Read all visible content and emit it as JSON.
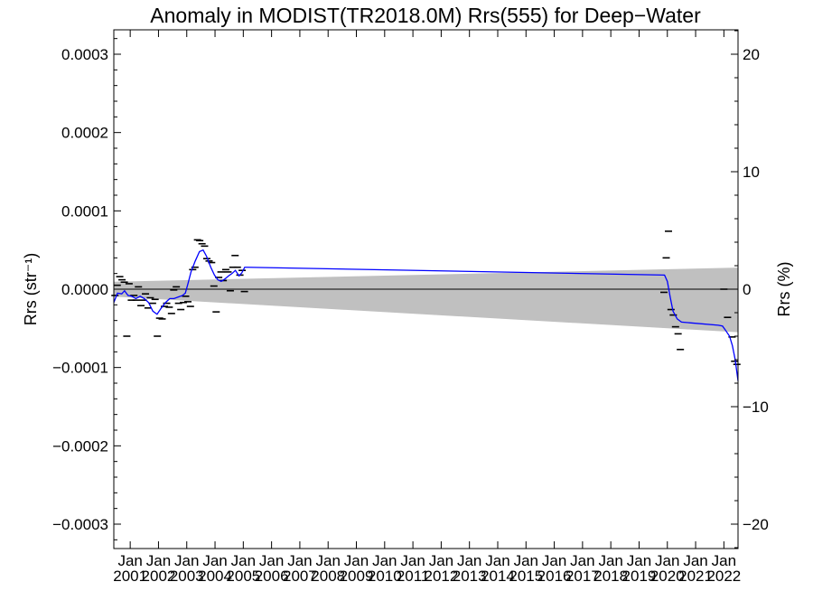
{
  "chart_data": {
    "type": "line",
    "title": "Anomaly in MODIST(TR2018.0M) Rrs(555) for Deep−Water",
    "ylabel_left": "Rrs (str⁻¹)",
    "ylabel_right": "Rrs (%)",
    "xlim": [
      2000.42,
      2022.5
    ],
    "ylim_left": [
      -0.00033,
      0.00033
    ],
    "ylim_right": [
      -22.8,
      22.8
    ],
    "x_ticks": [
      {
        "value": 2001.0,
        "line1": "Jan",
        "line2": "2001"
      },
      {
        "value": 2002.0,
        "line1": "Jan",
        "line2": "2002"
      },
      {
        "value": 2003.0,
        "line1": "Jan",
        "line2": "2003"
      },
      {
        "value": 2004.0,
        "line1": "Jan",
        "line2": "2004"
      },
      {
        "value": 2005.0,
        "line1": "Jan",
        "line2": "2005"
      },
      {
        "value": 2006.0,
        "line1": "Jan",
        "line2": "2006"
      },
      {
        "value": 2007.0,
        "line1": "Jan",
        "line2": "2007"
      },
      {
        "value": 2008.0,
        "line1": "Jan",
        "line2": "2008"
      },
      {
        "value": 2009.0,
        "line1": "Jan",
        "line2": "2009"
      },
      {
        "value": 2010.0,
        "line1": "Jan",
        "line2": "2010"
      },
      {
        "value": 2011.0,
        "line1": "Jan",
        "line2": "2011"
      },
      {
        "value": 2012.0,
        "line1": "Jan",
        "line2": "2012"
      },
      {
        "value": 2013.0,
        "line1": "Jan",
        "line2": "2013"
      },
      {
        "value": 2014.0,
        "line1": "Jan",
        "line2": "2014"
      },
      {
        "value": 2015.0,
        "line1": "Jan",
        "line2": "2015"
      },
      {
        "value": 2016.0,
        "line1": "Jan",
        "line2": "2016"
      },
      {
        "value": 2017.0,
        "line1": "Jan",
        "line2": "2017"
      },
      {
        "value": 2018.0,
        "line1": "Jan",
        "line2": "2018"
      },
      {
        "value": 2019.0,
        "line1": "Jan",
        "line2": "2019"
      },
      {
        "value": 2020.0,
        "line1": "Jan",
        "line2": "2020"
      },
      {
        "value": 2021.0,
        "line1": "Jan",
        "line2": "2021"
      },
      {
        "value": 2022.0,
        "line1": "Jan",
        "line2": "2022"
      }
    ],
    "y_ticks_left": [
      {
        "value": 0.0003,
        "label": "0.0003"
      },
      {
        "value": 0.0002,
        "label": "0.0002"
      },
      {
        "value": 0.0001,
        "label": "0.0001"
      },
      {
        "value": 0.0,
        "label": "0.0000"
      },
      {
        "value": -0.0001,
        "label": "−0.0001"
      },
      {
        "value": -0.0002,
        "label": "−0.0002"
      },
      {
        "value": -0.0003,
        "label": "−0.0003"
      }
    ],
    "y_ticks_right": [
      {
        "value": 20,
        "label": "20"
      },
      {
        "value": 10,
        "label": "10"
      },
      {
        "value": 0,
        "label": "0"
      },
      {
        "value": -10,
        "label": "−10"
      },
      {
        "value": -20,
        "label": "−20"
      }
    ],
    "uncertainty_band": {
      "color": "#c0c0c0",
      "upper": [
        [
          2000.42,
          9.5e-06
        ],
        [
          2022.5,
          2.75e-05
        ]
      ],
      "lower": [
        [
          2000.42,
          -9.5e-06
        ],
        [
          2022.5,
          -5.5e-05
        ]
      ]
    },
    "zero_line": {
      "value": 0,
      "color": "#000000"
    },
    "series": [
      {
        "kind": "monthly-anomaly-markers",
        "color": "#000000",
        "points": [
          [
            2000.46,
            -8e-06
          ],
          [
            2000.54,
            5e-06
          ],
          [
            2000.63,
            1.6e-05
          ],
          [
            2000.71,
            1.2e-05
          ],
          [
            2000.79,
            9e-06
          ],
          [
            2000.88,
            -6e-05
          ],
          [
            2000.96,
            7e-06
          ],
          [
            2001.04,
            -1.4e-05
          ],
          [
            2001.13,
            -8e-06
          ],
          [
            2001.21,
            -1.4e-05
          ],
          [
            2001.29,
            3e-06
          ],
          [
            2001.38,
            -2.1e-05
          ],
          [
            2001.46,
            -1.4e-05
          ],
          [
            2001.54,
            -6e-06
          ],
          [
            2001.63,
            -2.4e-05
          ],
          [
            2001.71,
            -1.1e-05
          ],
          [
            2001.79,
            -1.8e-05
          ],
          [
            2001.88,
            -1.3e-05
          ],
          [
            2001.96,
            -6e-05
          ],
          [
            2002.04,
            -3.7e-05
          ],
          [
            2002.13,
            -3.8e-05
          ],
          [
            2002.21,
            -2.2e-05
          ],
          [
            2002.29,
            -1.8e-05
          ],
          [
            2002.38,
            -2.3e-05
          ],
          [
            2002.46,
            -3.1e-05
          ],
          [
            2002.54,
            -1e-06
          ],
          [
            2002.63,
            3e-06
          ],
          [
            2002.71,
            -1.8e-05
          ],
          [
            2002.79,
            -2.6e-05
          ],
          [
            2002.88,
            -1.7e-05
          ],
          [
            2002.96,
            -9e-06
          ],
          [
            2003.04,
            -1.6e-05
          ],
          [
            2003.13,
            -2.2e-05
          ],
          [
            2003.21,
            2.5e-05
          ],
          [
            2003.29,
            2.8e-05
          ],
          [
            2003.38,
            6.3e-05
          ],
          [
            2003.46,
            6.2e-05
          ],
          [
            2003.54,
            5.8e-05
          ],
          [
            2003.63,
            5.5e-05
          ],
          [
            2003.71,
            3.9e-05
          ],
          [
            2003.79,
            3.6e-05
          ],
          [
            2003.88,
            3.4e-05
          ],
          [
            2003.96,
            4e-06
          ],
          [
            2004.04,
            -2.9e-05
          ],
          [
            2004.13,
            1.5e-05
          ],
          [
            2004.21,
            2.2e-05
          ],
          [
            2004.29,
            1.1e-05
          ],
          [
            2004.38,
            2.5e-05
          ],
          [
            2004.46,
            2.2e-05
          ],
          [
            2004.54,
            -2e-06
          ],
          [
            2004.63,
            2.8e-05
          ],
          [
            2004.71,
            4.3e-05
          ],
          [
            2004.79,
            2.8e-05
          ],
          [
            2004.88,
            1.8e-05
          ],
          [
            2004.96,
            2.4e-05
          ],
          [
            2005.04,
            -3e-06
          ],
          [
            2019.88,
            -4e-06
          ],
          [
            2019.96,
            4e-05
          ],
          [
            2020.04,
            7.4e-05
          ],
          [
            2020.13,
            -2.6e-05
          ],
          [
            2020.21,
            -3.3e-05
          ],
          [
            2020.29,
            -4.8e-05
          ],
          [
            2020.38,
            -5.7e-05
          ],
          [
            2020.46,
            -7.7e-05
          ],
          [
            2022.0,
            0.0
          ],
          [
            2022.13,
            -3.6e-05
          ],
          [
            2022.29,
            -6.1e-05
          ],
          [
            2022.38,
            -9.2e-05
          ],
          [
            2022.46,
            -9.6e-05
          ]
        ]
      },
      {
        "kind": "smoothed-line",
        "color": "#0000ff",
        "points": [
          [
            2000.42,
            -1.7e-05
          ],
          [
            2000.55,
            -5e-06
          ],
          [
            2000.7,
            -6e-06
          ],
          [
            2000.8,
            -2e-06
          ],
          [
            2000.92,
            -8e-06
          ],
          [
            2001.05,
            -9e-06
          ],
          [
            2001.2,
            -1.2e-05
          ],
          [
            2001.35,
            -9e-06
          ],
          [
            2001.5,
            -1.2e-05
          ],
          [
            2001.65,
            -1.7e-05
          ],
          [
            2001.8,
            -2.8e-05
          ],
          [
            2001.95,
            -3.2e-05
          ],
          [
            2002.1,
            -2.4e-05
          ],
          [
            2002.25,
            -1.7e-05
          ],
          [
            2002.4,
            -1.2e-05
          ],
          [
            2002.55,
            -1.2e-05
          ],
          [
            2002.7,
            -1e-05
          ],
          [
            2002.85,
            -8e-06
          ],
          [
            2002.95,
            -5e-06
          ],
          [
            2003.05,
            8e-06
          ],
          [
            2003.15,
            2.2e-05
          ],
          [
            2003.3,
            3.6e-05
          ],
          [
            2003.45,
            4.8e-05
          ],
          [
            2003.58,
            5e-05
          ],
          [
            2003.7,
            4.2e-05
          ],
          [
            2003.85,
            2.8e-05
          ],
          [
            2003.98,
            1.8e-05
          ],
          [
            2004.1,
            1.2e-05
          ],
          [
            2004.22,
            1e-05
          ],
          [
            2004.35,
            1.3e-05
          ],
          [
            2004.48,
            1.7e-05
          ],
          [
            2004.6,
            2e-05
          ],
          [
            2004.72,
            2.4e-05
          ],
          [
            2004.85,
            1.7e-05
          ],
          [
            2004.95,
            2.1e-05
          ],
          [
            2005.05,
            2.8e-05
          ],
          [
            2005.15,
            2.8e-05
          ],
          [
            2019.9,
            1.8e-05
          ],
          [
            2020.0,
            1e-05
          ],
          [
            2020.1,
            -1e-05
          ],
          [
            2020.2,
            -2.8e-05
          ],
          [
            2020.35,
            -3.8e-05
          ],
          [
            2020.5,
            -4.2e-05
          ],
          [
            2021.8,
            -4.6e-05
          ],
          [
            2021.95,
            -4.7e-05
          ],
          [
            2022.05,
            -5.2e-05
          ],
          [
            2022.2,
            -6e-05
          ],
          [
            2022.3,
            -7.2e-05
          ],
          [
            2022.4,
            -9e-05
          ],
          [
            2022.5,
            -0.000117
          ]
        ]
      }
    ]
  }
}
